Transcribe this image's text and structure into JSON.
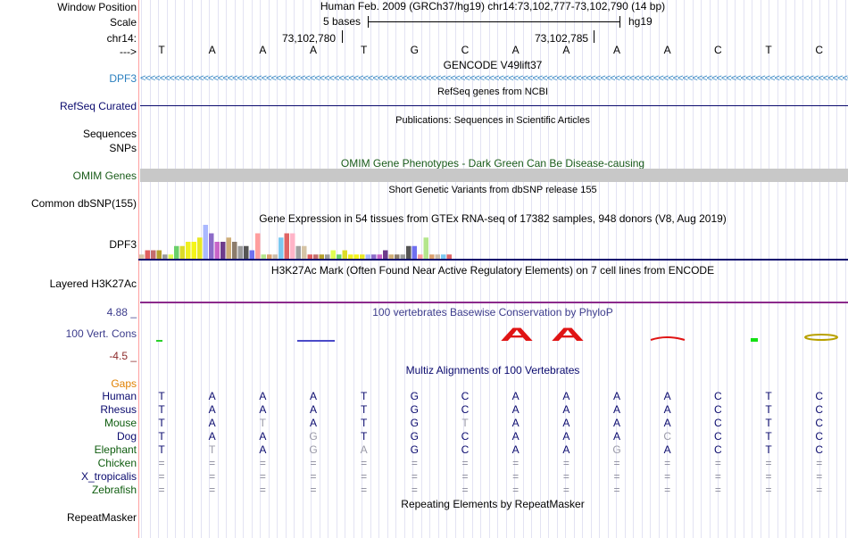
{
  "colors": {
    "navy": "#0a0a6e",
    "dpf3_blue": "#2a7fbf",
    "omim_green": "#1a5c1a",
    "gtex_bars": [
      "#d6c4a6",
      "#e15f5f",
      "#c46d6d",
      "#b5a02c",
      "#9b9b9b",
      "#e0ff50",
      "#6ad06a",
      "#dcdc28",
      "#f0f020",
      "#f5f518",
      "#e8e824",
      "#aab8ff",
      "#8c6bc8",
      "#c864c8",
      "#6e3c8c",
      "#cfae78",
      "#8c7c6c",
      "#9a9a9a",
      "#555555",
      "#7070f0",
      "#ff9e9e",
      "#b4e68c",
      "#dca06e",
      "#cbbcaa",
      "#7bc8f0",
      "#e06464",
      "#ffb4c8",
      "#a0a0a0"
    ]
  },
  "header": {
    "window_position_label": "Window Position",
    "scale_label": "Scale",
    "chrom_label": "chr14:",
    "arrow_label": "--->",
    "position_text": "Human Feb. 2009 (GRCh37/hg19)   chr14:73,102,777-73,102,790 (14 bp)",
    "scale_text": "5 bases",
    "assembly": "hg19",
    "coord1": "73,102,780",
    "coord2": "73,102,785",
    "sequence": [
      "T",
      "A",
      "A",
      "A",
      "T",
      "G",
      "C",
      "A",
      "A",
      "A",
      "A",
      "C",
      "T",
      "C"
    ]
  },
  "tracks": {
    "gencode_title": "GENCODE V49lift37",
    "dpf3_label": "DPF3",
    "refseq_title": "RefSeq genes from NCBI",
    "refseq_label": "RefSeq Curated",
    "publications_title": "Publications: Sequences in Scientific Articles",
    "sequences_label": "Sequences",
    "snps_label": "SNPs",
    "omim_title": "OMIM Gene Phenotypes - Dark Green Can Be Disease-causing",
    "omim_label": "OMIM Genes",
    "dbsnp_title": "Short Genetic Variants from dbSNP release 155",
    "dbsnp_label": "Common dbSNP(155)",
    "gtex_title": "Gene Expression in 54 tissues from GTEx RNA-seq of 17382 samples, 948 donors (V8, Aug 2019)",
    "gtex_label": "DPF3",
    "h3k27_title": "H3K27Ac Mark (Often Found Near Active Regulatory Elements) on 7 cell lines from ENCODE",
    "h3k27_label": "Layered H3K27Ac",
    "cons_title": "100 vertebrates Basewise Conservation by PhyloP",
    "cons_label": "100 Vert. Cons",
    "cons_max": "4.88 _",
    "cons_min": "-4.5 _",
    "multiz_title": "Multiz Alignments of 100 Vertebrates",
    "gaps_label": "Gaps",
    "repeat_title": "Repeating Elements by RepeatMasker",
    "repeat_label": "RepeatMasker"
  },
  "gtex_values": [
    1,
    2,
    2,
    2,
    1,
    1,
    3,
    3,
    4,
    4,
    5,
    8,
    6,
    4,
    4,
    5,
    4,
    3,
    3,
    2,
    6,
    1,
    1,
    1,
    5,
    6,
    6,
    3,
    3,
    1,
    1,
    1,
    1,
    2,
    1,
    2,
    1,
    1,
    1,
    1,
    1,
    1,
    2,
    1,
    1,
    1,
    3,
    3,
    1,
    5,
    1,
    1,
    1,
    1
  ],
  "alignment": [
    {
      "species": "Human",
      "seq": [
        "T",
        "A",
        "A",
        "A",
        "T",
        "G",
        "C",
        "A",
        "A",
        "A",
        "A",
        "C",
        "T",
        "C"
      ]
    },
    {
      "species": "Rhesus",
      "seq": [
        "T",
        "A",
        "A",
        "A",
        "T",
        "G",
        "C",
        "A",
        "A",
        "A",
        "A",
        "C",
        "T",
        "C"
      ]
    },
    {
      "species": "Mouse",
      "seq": [
        "T",
        "A",
        "T",
        "A",
        "T",
        "G",
        "T",
        "A",
        "A",
        "A",
        "A",
        "C",
        "T",
        "C"
      ]
    },
    {
      "species": "Dog",
      "seq": [
        "T",
        "A",
        "A",
        "G",
        "T",
        "G",
        "C",
        "A",
        "A",
        "A",
        "C",
        "C",
        "T",
        "C"
      ]
    },
    {
      "species": "Elephant",
      "seq": [
        "T",
        "T",
        "A",
        "G",
        "A",
        "G",
        "C",
        "A",
        "A",
        "G",
        "A",
        "C",
        "T",
        "C"
      ]
    },
    {
      "species": "Chicken",
      "seq": [
        "=",
        "=",
        "=",
        "=",
        "=",
        "=",
        "=",
        "=",
        "=",
        "=",
        "=",
        "=",
        "=",
        "="
      ]
    },
    {
      "species": "X_tropicalis",
      "seq": [
        "=",
        "=",
        "=",
        "=",
        "=",
        "=",
        "=",
        "=",
        "=",
        "=",
        "=",
        "=",
        "=",
        "="
      ]
    },
    {
      "species": "Zebrafish",
      "seq": [
        "=",
        "=",
        "=",
        "=",
        "=",
        "=",
        "=",
        "=",
        "=",
        "=",
        "=",
        "=",
        "=",
        "="
      ]
    }
  ],
  "species_colors": [
    "#0a0a6e",
    "#0a0a6e",
    "#0e5c0e",
    "#0a0a6e",
    "#0e5c0e",
    "#0e5c0e",
    "#0a0a6e",
    "#0e5c0e"
  ]
}
